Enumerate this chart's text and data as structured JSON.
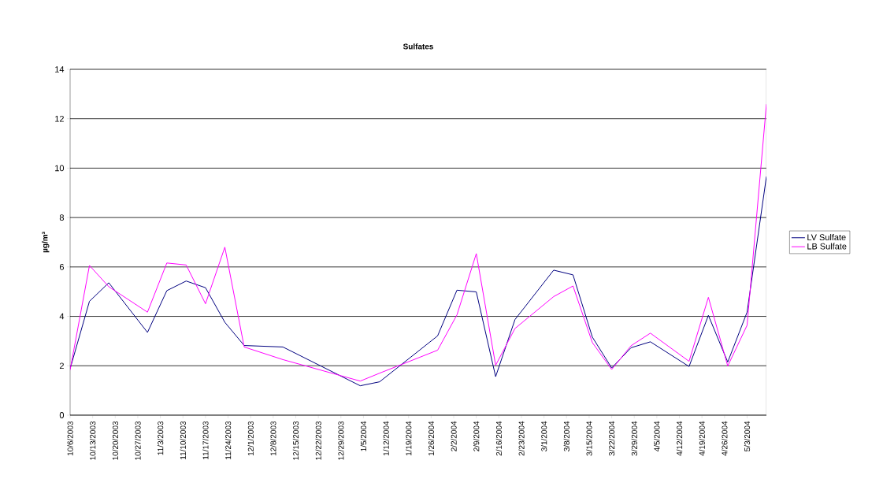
{
  "chart_data": {
    "type": "line",
    "title": "Sulfates",
    "ylabel": "µg/m³",
    "x": [
      "2003-10-06",
      "2003-10-12",
      "2003-10-18",
      "2003-10-30",
      "2003-11-05",
      "2003-11-11",
      "2003-11-17",
      "2003-11-23",
      "2003-11-29",
      "2003-12-11",
      "2004-01-04",
      "2004-01-10",
      "2004-01-28",
      "2004-02-03",
      "2004-02-09",
      "2004-02-15",
      "2004-02-21",
      "2004-03-04",
      "2004-03-10",
      "2004-03-16",
      "2004-03-22",
      "2004-03-28",
      "2004-04-03",
      "2004-04-15",
      "2004-04-21",
      "2004-04-27",
      "2004-05-03",
      "2004-05-09"
    ],
    "series": [
      {
        "name": "LV Sulfate",
        "color": "#000080",
        "values": [
          1.88,
          4.61,
          5.36,
          3.35,
          5.04,
          5.43,
          5.16,
          3.76,
          2.82,
          2.76,
          1.19,
          1.35,
          3.21,
          5.06,
          4.99,
          1.56,
          3.87,
          5.87,
          5.68,
          3.16,
          1.91,
          2.73,
          2.97,
          1.97,
          4.04,
          2.15,
          4.17,
          9.66
        ]
      },
      {
        "name": "LB Sulfate",
        "color": "#ff00ff",
        "values": [
          1.83,
          6.06,
          5.2,
          4.17,
          6.16,
          6.08,
          4.51,
          6.8,
          2.76,
          2.25,
          1.38,
          1.7,
          2.63,
          4.06,
          6.54,
          2.02,
          3.51,
          4.8,
          5.23,
          2.94,
          1.85,
          2.81,
          3.32,
          2.18,
          4.77,
          1.99,
          3.64,
          12.59
        ]
      }
    ],
    "xlim": [
      "2003-10-06",
      "2004-05-09"
    ],
    "xticks": [
      {
        "value": "2003-10-06",
        "label": "10/6/2003"
      },
      {
        "value": "2003-10-13",
        "label": "10/13/2003"
      },
      {
        "value": "2003-10-20",
        "label": "10/20/2003"
      },
      {
        "value": "2003-10-27",
        "label": "10/27/2003"
      },
      {
        "value": "2003-11-03",
        "label": "11/3/2003"
      },
      {
        "value": "2003-11-10",
        "label": "11/10/2003"
      },
      {
        "value": "2003-11-17",
        "label": "11/17/2003"
      },
      {
        "value": "2003-11-24",
        "label": "11/24/2003"
      },
      {
        "value": "2003-12-01",
        "label": "12/1/2003"
      },
      {
        "value": "2003-12-08",
        "label": "12/8/2003"
      },
      {
        "value": "2003-12-15",
        "label": "12/15/2003"
      },
      {
        "value": "2003-12-22",
        "label": "12/22/2003"
      },
      {
        "value": "2003-12-29",
        "label": "12/29/2003"
      },
      {
        "value": "2004-01-05",
        "label": "1/5/2004"
      },
      {
        "value": "2004-01-12",
        "label": "1/12/2004"
      },
      {
        "value": "2004-01-19",
        "label": "1/19/2004"
      },
      {
        "value": "2004-01-26",
        "label": "1/26/2004"
      },
      {
        "value": "2004-02-02",
        "label": "2/2/2004"
      },
      {
        "value": "2004-02-09",
        "label": "2/9/2004"
      },
      {
        "value": "2004-02-16",
        "label": "2/16/2004"
      },
      {
        "value": "2004-02-23",
        "label": "2/23/2004"
      },
      {
        "value": "2004-03-01",
        "label": "3/1/2004"
      },
      {
        "value": "2004-03-08",
        "label": "3/8/2004"
      },
      {
        "value": "2004-03-15",
        "label": "3/15/2004"
      },
      {
        "value": "2004-03-22",
        "label": "3/22/2004"
      },
      {
        "value": "2004-03-29",
        "label": "3/29/2004"
      },
      {
        "value": "2004-04-05",
        "label": "4/5/2004"
      },
      {
        "value": "2004-04-12",
        "label": "4/12/2004"
      },
      {
        "value": "2004-04-19",
        "label": "4/19/2004"
      },
      {
        "value": "2004-04-26",
        "label": "4/26/2004"
      },
      {
        "value": "2004-05-03",
        "label": "5/3/2004"
      }
    ],
    "ylim": [
      0,
      14
    ],
    "yticks": [
      0,
      2,
      4,
      6,
      8,
      10,
      12,
      14
    ],
    "grid": "y",
    "legend": "right"
  }
}
